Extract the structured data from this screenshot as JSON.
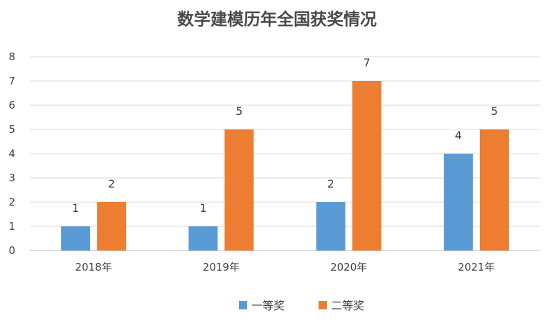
{
  "chart_data": {
    "type": "bar",
    "title": "数学建模历年全国获奖情况",
    "categories": [
      "2018年",
      "2019年",
      "2020年",
      "2021年"
    ],
    "series": [
      {
        "name": "一等奖",
        "values": [
          1,
          1,
          2,
          4
        ],
        "color": "#5b9bd5"
      },
      {
        "name": "二等奖",
        "values": [
          2,
          5,
          7,
          5
        ],
        "color": "#ed7d31"
      }
    ],
    "ylim": [
      0,
      8
    ],
    "yticks": [
      "0",
      "1",
      "2",
      "3",
      "4",
      "5",
      "6",
      "7",
      "8"
    ],
    "grid": true,
    "legend": "bottom",
    "data_labels": true
  }
}
